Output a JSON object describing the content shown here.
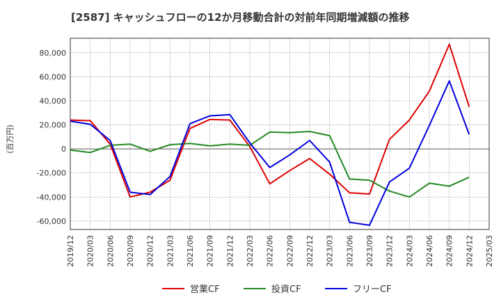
{
  "chart_data": {
    "type": "line",
    "title": "[2587]  キャッシュフローの12か月移動合計の対前年同期増減額の推移",
    "ylabel": "(百万円)",
    "xlabel": "",
    "ylim": [
      -67000,
      92000
    ],
    "yticks": [
      80000,
      60000,
      40000,
      20000,
      0,
      -20000,
      -40000,
      -60000
    ],
    "ytick_labels": [
      "80,000",
      "60,000",
      "40,000",
      "20,000",
      "0",
      "-20,000",
      "-40,000",
      "-60,000"
    ],
    "categories": [
      "2019/12",
      "2020/03",
      "2020/06",
      "2020/09",
      "2020/12",
      "2021/03",
      "2021/06",
      "2021/09",
      "2021/12",
      "2022/03",
      "2022/06",
      "2022/09",
      "2022/12",
      "2023/03",
      "2023/06",
      "2023/09",
      "2023/12",
      "2024/03",
      "2024/06",
      "2024/09",
      "2024/12",
      "2025/03"
    ],
    "legend_position": "bottom",
    "series": [
      {
        "name": "営業CF",
        "color": "#dd0000",
        "values": [
          24000,
          23500,
          4000,
          -40000,
          -36000,
          -26000,
          17000,
          24500,
          24000,
          2000,
          -29000,
          -18000,
          -8000,
          -21000,
          -36500,
          -37500,
          8000,
          24000,
          48000,
          87000,
          35000,
          null
        ]
      },
      {
        "name": "投資CF",
        "color": "#228822",
        "values": [
          -1000,
          -3000,
          3000,
          4000,
          -2000,
          3500,
          4500,
          2500,
          4000,
          3000,
          14000,
          13500,
          14500,
          11000,
          -25000,
          -26000,
          -35000,
          -40000,
          -28500,
          -31000,
          -23500,
          null
        ]
      },
      {
        "name": "フリーCF",
        "color": "#0000dd",
        "values": [
          23000,
          20500,
          7000,
          -36000,
          -38000,
          -23000,
          21000,
          27500,
          28500,
          5000,
          -15500,
          -5000,
          7000,
          -11000,
          -61000,
          -63500,
          -27500,
          -16000,
          19500,
          56500,
          12000,
          null
        ]
      }
    ]
  }
}
